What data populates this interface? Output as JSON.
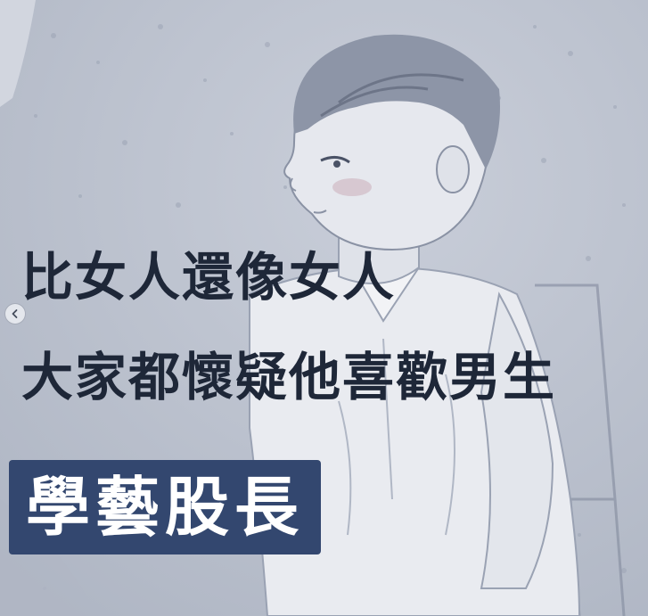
{
  "image": {
    "palette": {
      "background": "#bcc2cf",
      "text": "#1e2738",
      "tag_background": "#33476f",
      "tag_text": "#ffffff"
    }
  },
  "caption": {
    "line_1": "比女人還像女人",
    "line_2": "大家都懷疑他喜歡男生"
  },
  "role_tag": {
    "label": "學藝股長"
  },
  "carousel": {
    "prev_icon": "chevron-left-icon"
  }
}
